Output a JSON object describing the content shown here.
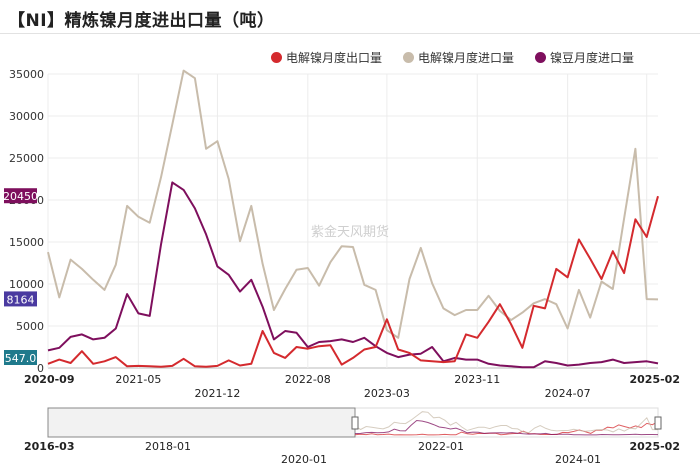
{
  "title": "【NI】精炼镍月度进出口量（吨）",
  "watermark": "紫金天风期货",
  "colors": {
    "export": "#d42a2e",
    "import": "#c8bcab",
    "bean_import": "#7e0f5d",
    "badge_export": "#7e0f5d",
    "badge_import": "#4a3aa0",
    "badge_bean": "#1f7a8c"
  },
  "chart_data": {
    "type": "line",
    "title": "【NI】精炼镍月度进出口量（吨）",
    "xlabel": "",
    "ylabel": "",
    "ylim": [
      0,
      35000
    ],
    "yticks": [
      "35000",
      "30000",
      "25000",
      "20000",
      "15000",
      "10000",
      "5000",
      "0"
    ],
    "grid": true,
    "legend_position": "top-right",
    "x_start": "2020-09",
    "x_end": "2025-02",
    "x_tick_labels_row1": [
      "2020-09",
      "2021-05",
      "2022-08",
      "2023-11",
      "2025-02"
    ],
    "x_tick_labels_row2": [
      "2021-12",
      "2023-03",
      "2024-07"
    ],
    "series": [
      {
        "name": "电解镍月度出口量",
        "color": "#d42a2e",
        "values": [
          500,
          1000,
          600,
          2000,
          500,
          800,
          1300,
          200,
          250,
          200,
          150,
          250,
          1100,
          200,
          150,
          250,
          900,
          300,
          500,
          4400,
          1800,
          1200,
          2500,
          2300,
          2600,
          2700,
          400,
          1200,
          2200,
          2500,
          5800,
          2200,
          1800,
          900,
          800,
          700,
          800,
          4000,
          3600,
          5500,
          7600,
          5200,
          2400,
          7400,
          7100,
          11800,
          10800,
          15300,
          13000,
          10600,
          13900,
          11300,
          17700,
          15600,
          20450
        ]
      },
      {
        "name": "电解镍月度进口量",
        "color": "#c8bcab",
        "values": [
          13800,
          8400,
          12900,
          11800,
          10500,
          9300,
          12300,
          19300,
          18000,
          17300,
          22700,
          29000,
          35400,
          34500,
          26100,
          27000,
          22500,
          15100,
          19300,
          12400,
          6900,
          9400,
          11700,
          11900,
          9800,
          12600,
          14500,
          14400,
          9900,
          9300,
          4500,
          3600,
          10600,
          14300,
          10100,
          7100,
          6300,
          6900,
          6900,
          8600,
          6800,
          5700,
          6600,
          7700,
          8200,
          7600,
          4700,
          9300,
          6000,
          10300,
          9400,
          17800,
          26100,
          8200,
          8164
        ]
      },
      {
        "name": "镍豆月度进口量",
        "color": "#7e0f5d",
        "values": [
          2100,
          2400,
          3700,
          4000,
          3400,
          3600,
          4700,
          8800,
          6500,
          6200,
          14700,
          22100,
          21200,
          19000,
          15900,
          12100,
          11100,
          9100,
          10500,
          7300,
          3400,
          4400,
          4200,
          2500,
          3100,
          3200,
          3400,
          3100,
          3600,
          2600,
          1800,
          1300,
          1600,
          1700,
          2500,
          800,
          1200,
          1000,
          1000,
          500,
          300,
          200,
          100,
          100,
          800,
          600,
          300,
          400,
          600,
          700,
          1000,
          600,
          700,
          800,
          547
        ]
      }
    ],
    "end_value_labels": [
      "20450",
      "8164",
      "547.0"
    ],
    "navigator": {
      "start_label": "2016-03",
      "end_label": "2025-02",
      "row1_labels": [
        "2018-01",
        "2022-01"
      ],
      "row2_labels": [
        "2020-01",
        "2024-01"
      ]
    }
  }
}
